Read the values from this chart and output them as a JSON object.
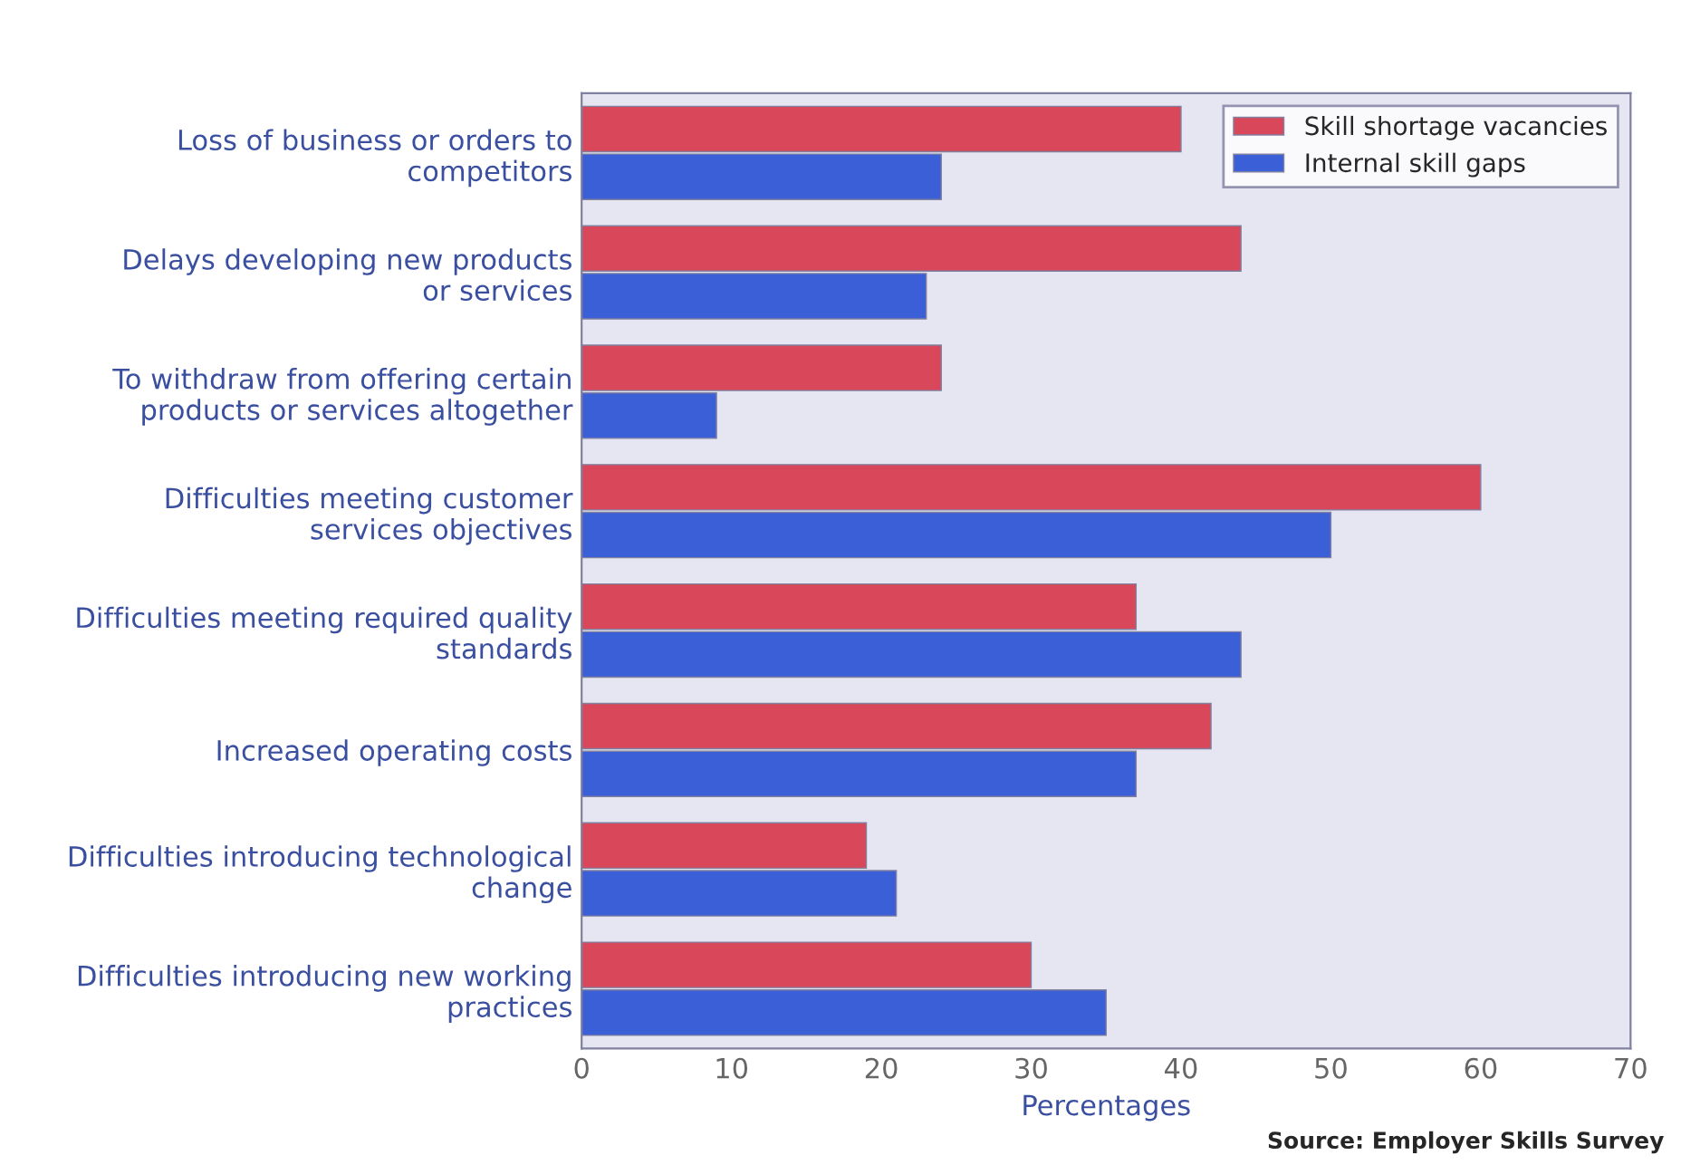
{
  "chart_data": {
    "type": "bar",
    "orientation": "horizontal",
    "xlabel": "Percentages",
    "categories": [
      "Loss of business or orders to\ncompetitors",
      "Delays developing new products\nor services",
      "To withdraw from offering certain\nproducts or services altogether",
      "Difficulties meeting customer\nservices objectives",
      "Difficulties meeting required quality\nstandards",
      "Increased operating costs",
      "Difficulties introducing technological\nchange",
      "Difficulties introducing new working\npractices"
    ],
    "series": [
      {
        "name": "Skill shortage vacancies",
        "color": "#d9475a",
        "values": [
          40,
          44,
          24,
          60,
          37,
          42,
          19,
          30
        ]
      },
      {
        "name": "Internal skill gaps",
        "color": "#3a5fd6",
        "values": [
          24,
          23,
          9,
          50,
          44,
          37,
          21,
          35
        ]
      }
    ],
    "xlim": [
      0,
      70
    ],
    "xticks": [
      0,
      10,
      20,
      30,
      40,
      50,
      60,
      70
    ],
    "grid": false,
    "legend": "top right",
    "annotations": [
      "Source: Employer Skills Survey"
    ]
  }
}
